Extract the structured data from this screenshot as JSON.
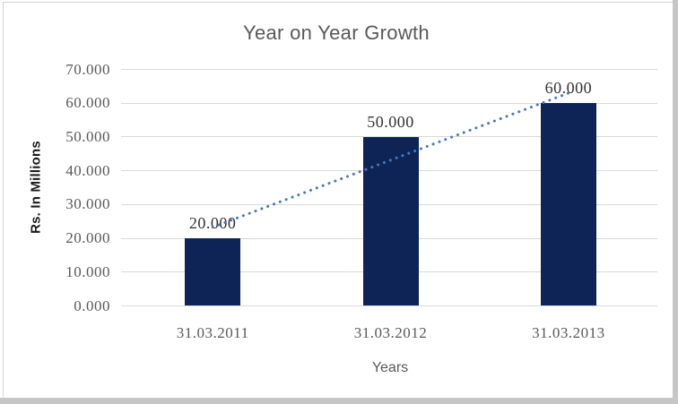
{
  "frame": {
    "background": "#ffffff",
    "outer_band_color": "#c6c6c6",
    "border_color": "#d4d4d4"
  },
  "chart_data": {
    "type": "bar",
    "title": "Year on Year Growth",
    "xlabel": "Years",
    "ylabel": "Rs. In Millions",
    "categories": [
      "31.03.2011",
      "31.03.2012",
      "31.03.2013"
    ],
    "values": [
      20,
      50,
      60
    ],
    "data_labels": [
      "20.000",
      "50.000",
      "60.000"
    ],
    "y_ticks": [
      "0.000",
      "10.000",
      "20.000",
      "30.000",
      "40.000",
      "50.000",
      "60.000",
      "70.000"
    ],
    "y_tick_values": [
      0,
      10,
      20,
      30,
      40,
      50,
      60,
      70
    ],
    "ylim": [
      0,
      70
    ],
    "grid": true,
    "legend": "none",
    "bar_color": "#0e2456",
    "gridline_color": "#d9d9d9",
    "title_color": "#595959",
    "tick_label_color": "#595959",
    "data_label_color": "#333333",
    "trendline": {
      "style": "dotted",
      "color": "#4a77be",
      "start_value": 23.3,
      "end_value": 63.3
    }
  }
}
